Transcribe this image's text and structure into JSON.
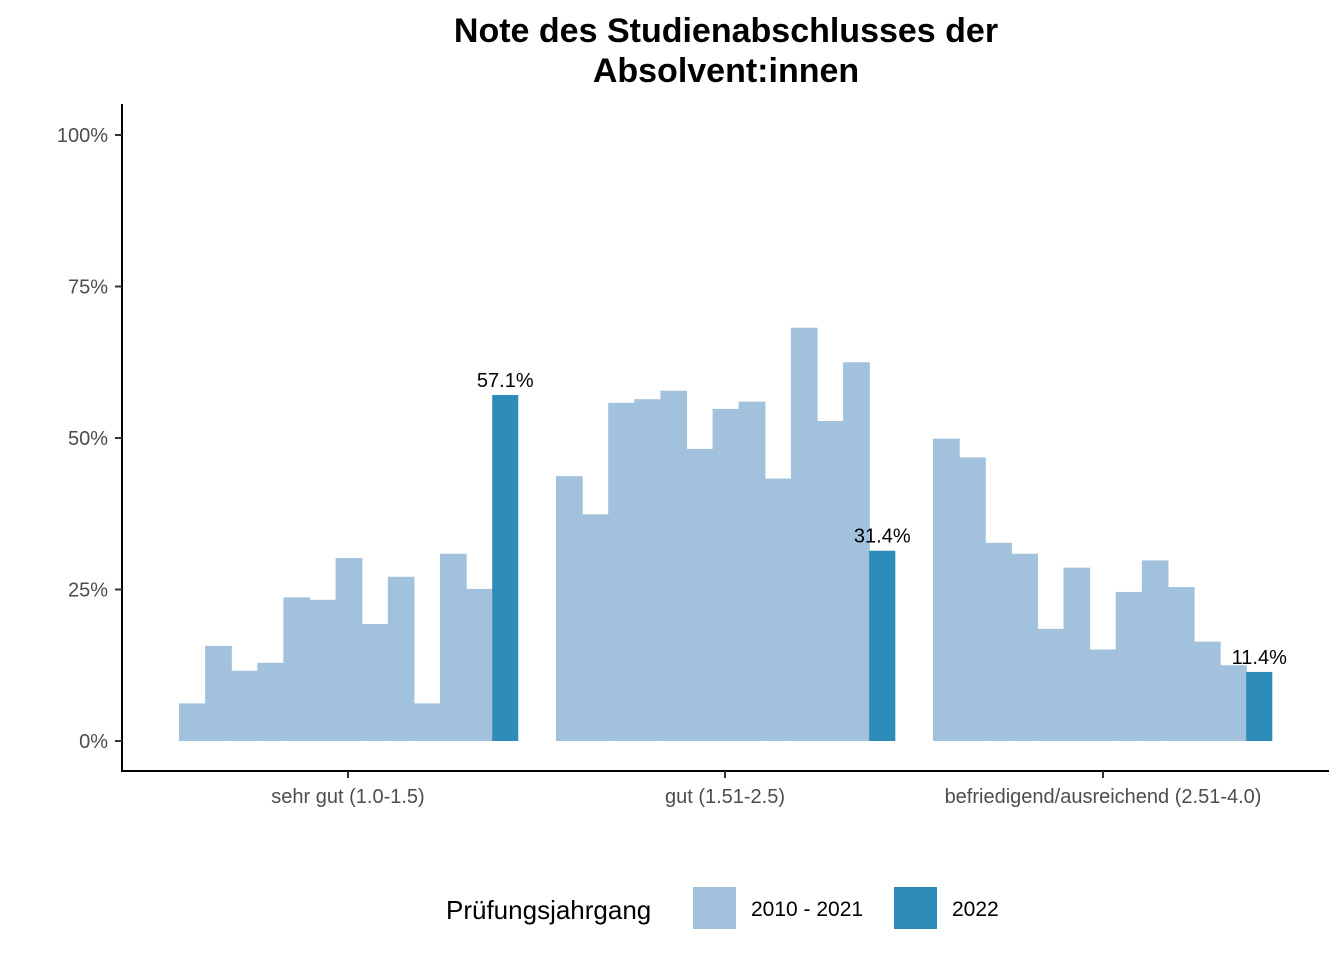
{
  "chart_data": {
    "type": "bar",
    "title": "Note des Studienabschlusses der Absolvent:innen",
    "title_lines": [
      "Note des Studienabschlusses der",
      "Absolvent:innen"
    ],
    "y_ticks": [
      "0%",
      "25%",
      "50%",
      "75%",
      "100%"
    ],
    "ylim": [
      0,
      100
    ],
    "categories": [
      "sehr gut (1.0-1.5)",
      "gut (1.51-2.5)",
      "befriedigend/ausreichend (2.51-4.0)"
    ],
    "groups": [
      {
        "category": "sehr gut (1.0-1.5)",
        "historical": [
          6.2,
          15.7,
          11.6,
          12.9,
          23.7,
          23.3,
          30.2,
          19.3,
          27.1,
          6.2,
          30.9,
          25.1
        ],
        "current": 57.1,
        "current_label": "57.1%"
      },
      {
        "category": "gut (1.51-2.5)",
        "historical": [
          43.7,
          37.4,
          55.8,
          56.4,
          57.8,
          48.2,
          54.8,
          56.0,
          43.3,
          68.2,
          52.8,
          62.5
        ],
        "current": 31.4,
        "current_label": "31.4%"
      },
      {
        "category": "befriedigend/ausreichend (2.51-4.0)",
        "historical": [
          49.9,
          46.8,
          32.7,
          30.9,
          18.5,
          28.6,
          15.1,
          24.6,
          29.8,
          25.4,
          16.4,
          12.5
        ],
        "current": 11.4,
        "current_label": "11.4%"
      }
    ],
    "legend": {
      "title": "Prüfungsjahrgang",
      "placement": "bottom",
      "items": [
        {
          "label": "2010 - 2021",
          "color": "#a1c1dd"
        },
        {
          "label": "2022",
          "color": "#2e8cb9"
        }
      ]
    }
  }
}
